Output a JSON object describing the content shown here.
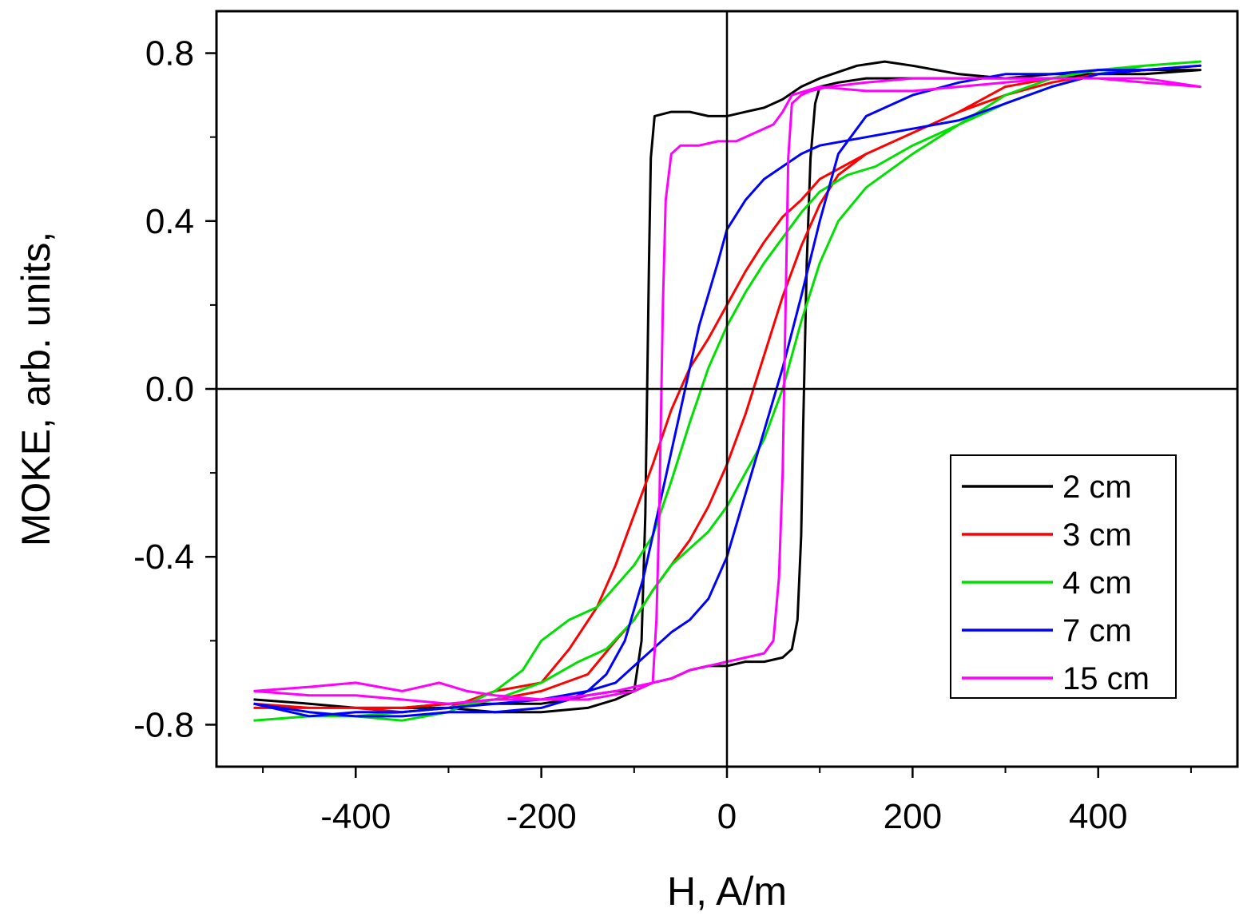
{
  "chart_data": {
    "type": "line",
    "title": "",
    "xlabel": "H, A/m",
    "ylabel": "MOKE, arb. units,",
    "xlim": [
      -550,
      550
    ],
    "ylim": [
      -0.9,
      0.9
    ],
    "x_ticks": [
      -400,
      -200,
      0,
      200,
      400
    ],
    "x_tick_labels": [
      "-400",
      "-200",
      "0",
      "200",
      "400"
    ],
    "y_ticks": [
      -0.8,
      -0.4,
      0.0,
      0.4,
      0.8
    ],
    "y_tick_labels": [
      "-0.8",
      "-0.4",
      "0.0",
      "0.4",
      "0.8"
    ],
    "x_minor_ticks": [
      -500,
      -300,
      -100,
      100,
      300,
      500
    ],
    "y_minor_ticks": [
      -0.6,
      -0.2,
      0.2,
      0.6
    ],
    "zero_lines": true,
    "grid": false,
    "legend_position": "bottom-right",
    "series": [
      {
        "name": "2 cm",
        "color": "#000000",
        "x": [
          -510,
          -450,
          -400,
          -350,
          -300,
          -250,
          -200,
          -150,
          -120,
          -100,
          -92,
          -88,
          -86,
          -84,
          -82,
          -78,
          -60,
          -40,
          -20,
          0,
          20,
          40,
          60,
          80,
          100,
          140,
          170,
          200,
          250,
          300,
          350,
          400,
          450,
          510,
          510,
          450,
          400,
          350,
          300,
          250,
          200,
          150,
          120,
          100,
          95,
          90,
          86,
          84,
          82,
          80,
          76,
          70,
          60,
          40,
          20,
          0,
          -20,
          -40,
          -60,
          -80,
          -100,
          -120,
          -150,
          -170,
          -200,
          -250,
          -300,
          -350,
          -400,
          -450,
          -510
        ],
        "y": [
          -0.74,
          -0.75,
          -0.76,
          -0.76,
          -0.76,
          -0.77,
          -0.77,
          -0.76,
          -0.74,
          -0.72,
          -0.6,
          -0.3,
          0.0,
          0.3,
          0.55,
          0.65,
          0.66,
          0.66,
          0.65,
          0.65,
          0.66,
          0.67,
          0.69,
          0.72,
          0.74,
          0.77,
          0.78,
          0.77,
          0.75,
          0.74,
          0.75,
          0.75,
          0.76,
          0.76,
          0.76,
          0.75,
          0.75,
          0.74,
          0.74,
          0.74,
          0.74,
          0.74,
          0.73,
          0.72,
          0.68,
          0.55,
          0.3,
          0.1,
          -0.1,
          -0.35,
          -0.55,
          -0.62,
          -0.64,
          -0.65,
          -0.65,
          -0.66,
          -0.66,
          -0.67,
          -0.69,
          -0.7,
          -0.72,
          -0.72,
          -0.73,
          -0.74,
          -0.75,
          -0.75,
          -0.75,
          -0.76,
          -0.76,
          -0.75,
          -0.74
        ]
      },
      {
        "name": "3 cm",
        "color": "#ff0000",
        "x": [
          -510,
          -450,
          -400,
          -350,
          -300,
          -250,
          -200,
          -170,
          -140,
          -120,
          -100,
          -80,
          -60,
          -40,
          -20,
          0,
          20,
          40,
          60,
          80,
          100,
          150,
          200,
          250,
          300,
          350,
          400,
          450,
          510,
          510,
          450,
          400,
          350,
          300,
          250,
          200,
          150,
          120,
          100,
          80,
          60,
          40,
          20,
          0,
          -20,
          -40,
          -60,
          -80,
          -100,
          -120,
          -150,
          -200,
          -250,
          -300,
          -350,
          -400,
          -450,
          -510
        ],
        "y": [
          -0.75,
          -0.76,
          -0.76,
          -0.77,
          -0.76,
          -0.72,
          -0.7,
          -0.62,
          -0.52,
          -0.42,
          -0.3,
          -0.18,
          -0.05,
          0.05,
          0.12,
          0.2,
          0.28,
          0.35,
          0.41,
          0.45,
          0.5,
          0.56,
          0.61,
          0.66,
          0.72,
          0.74,
          0.76,
          0.76,
          0.77,
          0.77,
          0.76,
          0.75,
          0.73,
          0.7,
          0.66,
          0.61,
          0.56,
          0.51,
          0.44,
          0.34,
          0.22,
          0.08,
          -0.06,
          -0.18,
          -0.28,
          -0.36,
          -0.42,
          -0.48,
          -0.55,
          -0.6,
          -0.68,
          -0.72,
          -0.74,
          -0.75,
          -0.76,
          -0.76,
          -0.76,
          -0.76
        ]
      },
      {
        "name": "4 cm",
        "color": "#00e000",
        "x": [
          -510,
          -450,
          -400,
          -350,
          -300,
          -250,
          -220,
          -200,
          -170,
          -140,
          -120,
          -100,
          -80,
          -60,
          -40,
          -20,
          0,
          20,
          40,
          60,
          80,
          100,
          130,
          160,
          200,
          250,
          300,
          350,
          400,
          450,
          510,
          510,
          450,
          400,
          350,
          300,
          250,
          200,
          150,
          120,
          100,
          80,
          60,
          40,
          20,
          0,
          -20,
          -40,
          -60,
          -80,
          -100,
          -130,
          -160,
          -200,
          -250,
          -300,
          -350,
          -400,
          -450,
          -510
        ],
        "y": [
          -0.79,
          -0.78,
          -0.78,
          -0.79,
          -0.77,
          -0.72,
          -0.67,
          -0.6,
          -0.55,
          -0.52,
          -0.47,
          -0.42,
          -0.35,
          -0.22,
          -0.08,
          0.05,
          0.15,
          0.23,
          0.3,
          0.36,
          0.42,
          0.47,
          0.51,
          0.53,
          0.58,
          0.63,
          0.7,
          0.74,
          0.76,
          0.77,
          0.78,
          0.78,
          0.77,
          0.75,
          0.72,
          0.68,
          0.63,
          0.56,
          0.48,
          0.4,
          0.3,
          0.16,
          0.0,
          -0.12,
          -0.2,
          -0.28,
          -0.34,
          -0.38,
          -0.42,
          -0.48,
          -0.55,
          -0.62,
          -0.65,
          -0.7,
          -0.74,
          -0.76,
          -0.77,
          -0.78,
          -0.78,
          -0.79
        ]
      },
      {
        "name": "7 cm",
        "color": "#0000ff",
        "x": [
          -510,
          -450,
          -400,
          -350,
          -300,
          -250,
          -200,
          -170,
          -150,
          -130,
          -110,
          -90,
          -70,
          -50,
          -30,
          -10,
          0,
          20,
          40,
          60,
          80,
          100,
          150,
          200,
          250,
          300,
          350,
          400,
          450,
          510,
          510,
          450,
          400,
          350,
          300,
          250,
          200,
          150,
          120,
          100,
          80,
          60,
          40,
          20,
          0,
          -20,
          -40,
          -60,
          -80,
          -100,
          -120,
          -150,
          -200,
          -250,
          -300,
          -350,
          -400,
          -450,
          -510
        ],
        "y": [
          -0.75,
          -0.77,
          -0.78,
          -0.78,
          -0.77,
          -0.77,
          -0.76,
          -0.74,
          -0.72,
          -0.68,
          -0.6,
          -0.45,
          -0.25,
          -0.05,
          0.15,
          0.3,
          0.38,
          0.45,
          0.5,
          0.53,
          0.56,
          0.58,
          0.6,
          0.62,
          0.64,
          0.68,
          0.72,
          0.75,
          0.76,
          0.77,
          0.77,
          0.76,
          0.76,
          0.75,
          0.75,
          0.73,
          0.7,
          0.65,
          0.56,
          0.4,
          0.22,
          0.05,
          -0.1,
          -0.25,
          -0.4,
          -0.5,
          -0.55,
          -0.58,
          -0.62,
          -0.66,
          -0.7,
          -0.72,
          -0.74,
          -0.75,
          -0.76,
          -0.77,
          -0.77,
          -0.78,
          -0.75
        ]
      },
      {
        "name": "15 cm",
        "color": "#ff00ff",
        "x": [
          -510,
          -450,
          -400,
          -350,
          -310,
          -280,
          -250,
          -200,
          -150,
          -100,
          -80,
          -76,
          -73,
          -71,
          -69,
          -66,
          -60,
          -50,
          -30,
          -10,
          10,
          30,
          50,
          60,
          70,
          100,
          150,
          200,
          250,
          300,
          350,
          400,
          450,
          510,
          510,
          450,
          400,
          350,
          300,
          250,
          200,
          150,
          110,
          90,
          80,
          70,
          66,
          64,
          62,
          60,
          56,
          50,
          40,
          20,
          0,
          -20,
          -40,
          -60,
          -80,
          -100,
          -120,
          -150,
          -200,
          -250,
          -300,
          -350,
          -400,
          -450,
          -510
        ],
        "y": [
          -0.72,
          -0.71,
          -0.7,
          -0.72,
          -0.7,
          -0.72,
          -0.73,
          -0.74,
          -0.74,
          -0.72,
          -0.7,
          -0.55,
          -0.3,
          -0.05,
          0.2,
          0.45,
          0.56,
          0.58,
          0.58,
          0.59,
          0.59,
          0.61,
          0.63,
          0.66,
          0.7,
          0.72,
          0.71,
          0.71,
          0.72,
          0.73,
          0.74,
          0.74,
          0.74,
          0.72,
          0.72,
          0.73,
          0.74,
          0.74,
          0.74,
          0.74,
          0.74,
          0.73,
          0.72,
          0.71,
          0.7,
          0.68,
          0.55,
          0.3,
          0.05,
          -0.2,
          -0.45,
          -0.6,
          -0.63,
          -0.64,
          -0.65,
          -0.66,
          -0.67,
          -0.69,
          -0.7,
          -0.71,
          -0.72,
          -0.73,
          -0.74,
          -0.74,
          -0.75,
          -0.74,
          -0.73,
          -0.73,
          -0.72
        ]
      }
    ]
  }
}
